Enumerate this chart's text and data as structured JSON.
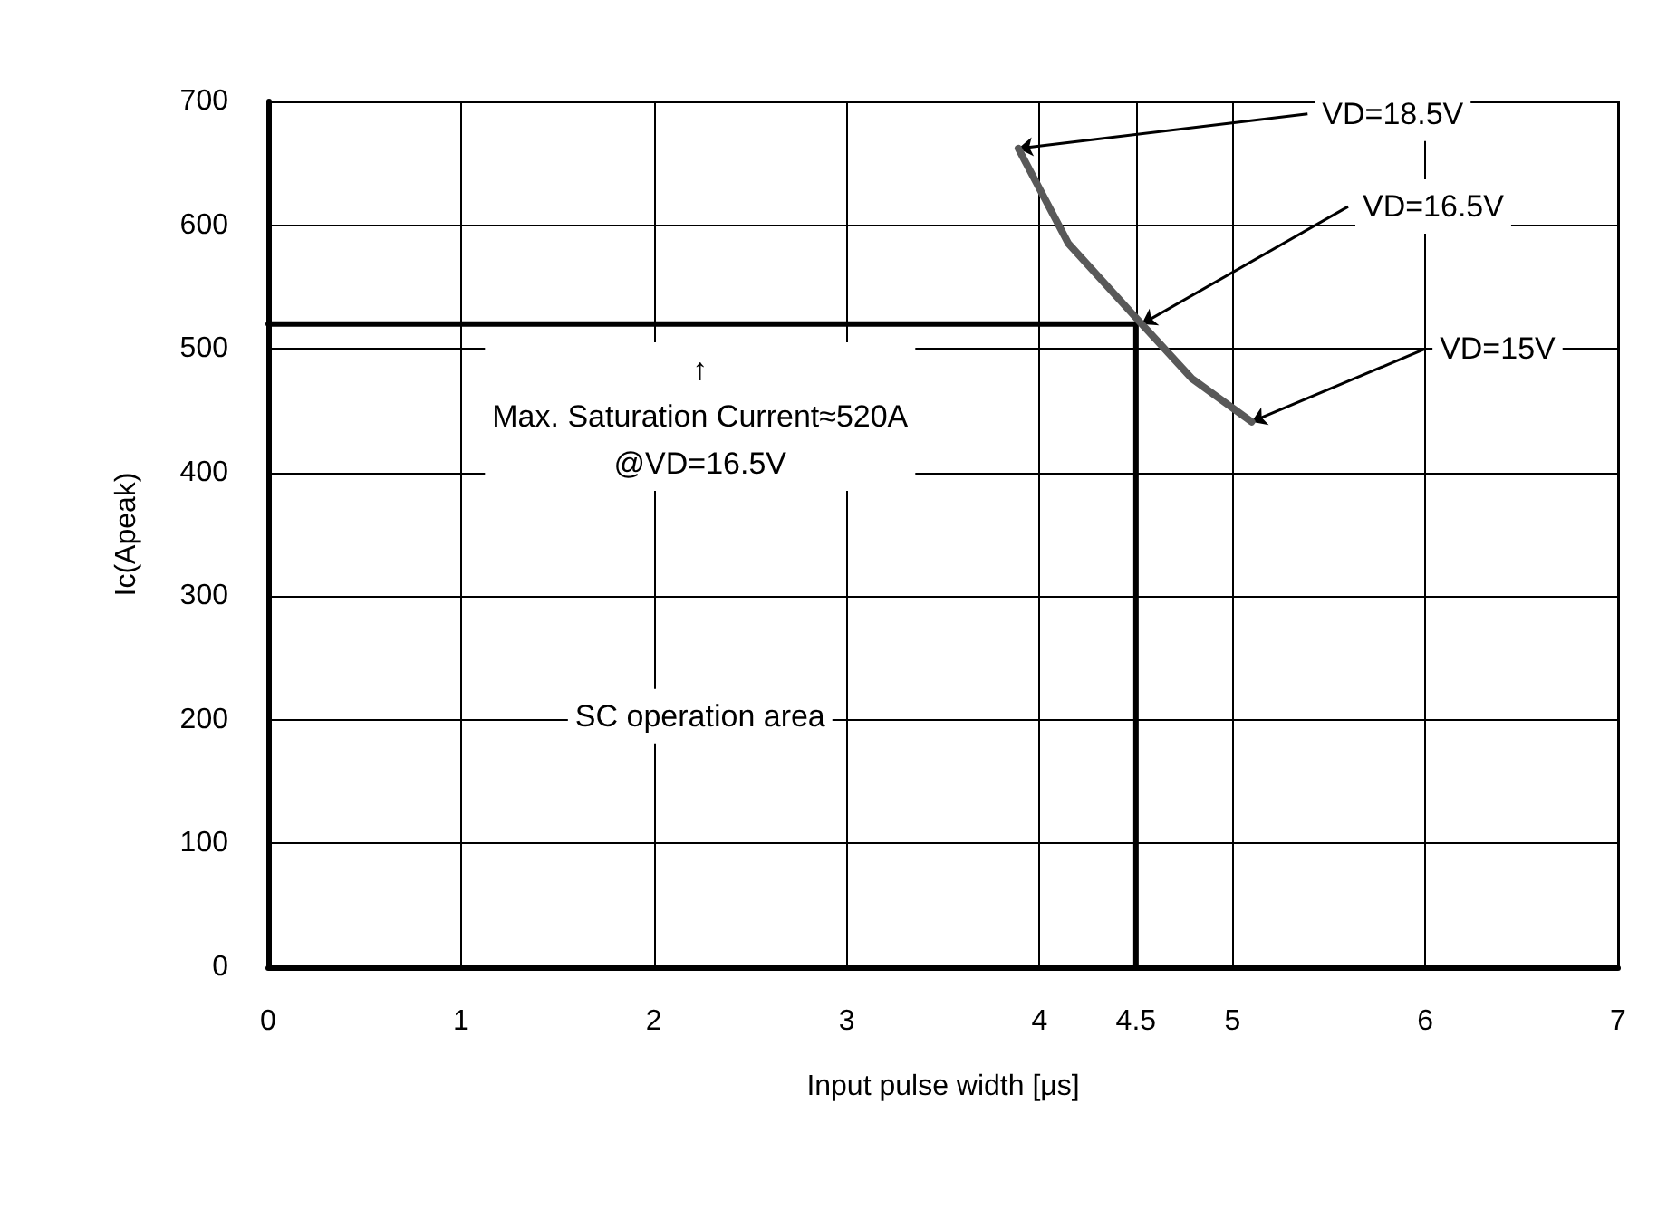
{
  "chart_data": {
    "type": "line",
    "xlabel": "Input pulse width [μs]",
    "ylabel": "Ic(Apeak)",
    "xlim": [
      0,
      7
    ],
    "xticks": [
      0,
      1,
      2,
      3,
      4,
      4.5,
      5,
      6,
      7
    ],
    "ylim": [
      0,
      700
    ],
    "yticks": [
      0,
      100,
      200,
      300,
      400,
      500,
      600,
      700
    ],
    "grid": true,
    "marker": "none",
    "line_style": "solid",
    "series": [
      {
        "color": "#595959",
        "x": [
          3.89,
          4.15,
          4.53,
          4.79,
          5.1
        ],
        "values": [
          662,
          585,
          520,
          476,
          441
        ]
      },
      {
        "color": "#000000",
        "x": [
          0,
          4.5,
          4.5
        ],
        "values": [
          520,
          520,
          0
        ]
      }
    ],
    "annotations": [
      {
        "text": "VD=18.5V",
        "x": 3.89,
        "y": 662
      },
      {
        "text": "VD=16.5V",
        "x": 4.53,
        "y": 520
      },
      {
        "text": "VD=15V",
        "x": 5.1,
        "y": 441
      },
      "↑\nMax. Saturation Current≈520A\n@VD=16.5V",
      "SC operation area"
    ]
  }
}
